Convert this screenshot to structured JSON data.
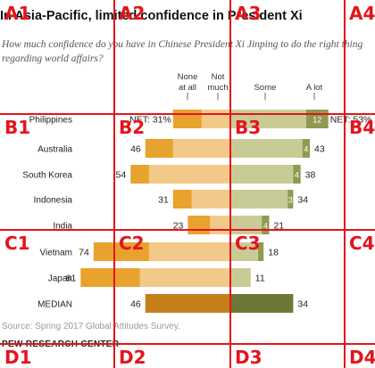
{
  "header": {
    "title": "In Asia-Pacific, limited confidence in President Xi",
    "subtitle": "How much confidence do you have in Chinese President Xi Jinping to do the right thing regarding world affairs?"
  },
  "footer": {
    "source": "Source: Spring 2017 Global Attitudes Survey.",
    "credit": "PEW RESEARCH CENTER"
  },
  "colors": {
    "none_at_all": "#e8a22e",
    "not_much": "#f3c98a",
    "some": "#c9cb97",
    "a_lot": "#8f9a50",
    "median_neg": "#c47f1b",
    "median_pos": "#6d7836",
    "grid_overlay": "#e4141b"
  },
  "chart_data": {
    "type": "bar",
    "layout": "diverging-stacked",
    "legend": [
      "None at all",
      "Not much",
      "Some",
      "A lot"
    ],
    "net_labels": [
      "NET",
      "NET"
    ],
    "categories": [
      "Philippines",
      "Australia",
      "South Korea",
      "Indonesia",
      "India",
      "Vietnam",
      "Japan",
      "MEDIAN"
    ],
    "negative_net": [
      31,
      46,
      54,
      31,
      23,
      74,
      81,
      46
    ],
    "positive_net": [
      53,
      43,
      38,
      34,
      21,
      18,
      11,
      34
    ],
    "series": [
      {
        "name": "None at all",
        "values": [
          null,
          15,
          10,
          10,
          12,
          30,
          32,
          null
        ]
      },
      {
        "name": "Not much",
        "values": [
          null,
          31,
          44,
          21,
          11,
          44,
          49,
          null
        ]
      },
      {
        "name": "Some",
        "values": [
          41,
          39,
          34,
          31,
          17,
          15,
          11,
          null
        ]
      },
      {
        "name": "A lot",
        "values": [
          12,
          4,
          4,
          3,
          4,
          3,
          0,
          null
        ]
      }
    ],
    "segment_labels": {
      "Philippines": "12",
      "Australia": "4",
      "South Korea": "4",
      "Indonesia": "3",
      "India": "4"
    }
  },
  "grid_overlay": {
    "labels": [
      "A1",
      "A2",
      "A3",
      "A4",
      "B1",
      "B2",
      "B3",
      "B4",
      "C1",
      "C2",
      "C3",
      "C4",
      "D1",
      "D2",
      "D3",
      "D4"
    ]
  }
}
